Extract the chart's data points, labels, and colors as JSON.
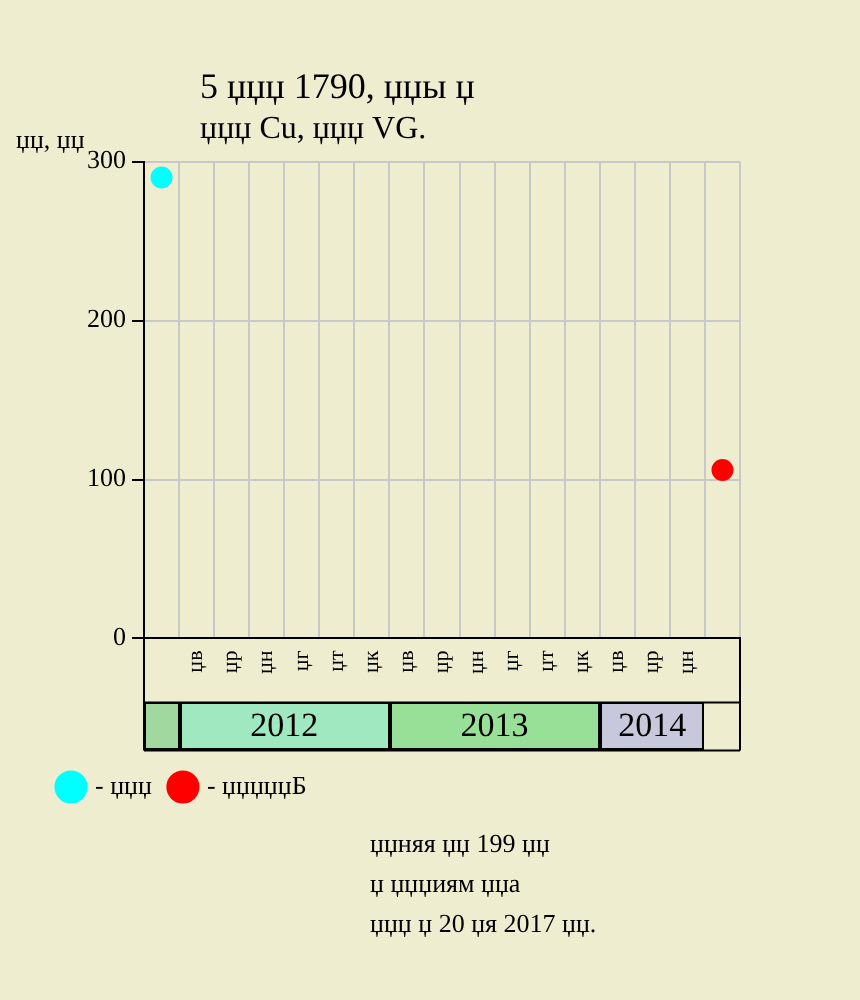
{
  "chart_data": {
    "type": "scatter",
    "title": "5 џџџ 1790, џџы џ\nџџџ Cu, џџџ VG.",
    "ylabel": "џџ, џџ",
    "categories": [
      null,
      "џв",
      "џр",
      "џн",
      "џг",
      "џт",
      "џк",
      "џв",
      "џр",
      "џн",
      "џг",
      "џт",
      "џк",
      "џв",
      "џр",
      "џн",
      null
    ],
    "series": [
      {
        "name": "- џџџ",
        "color": "#00ffff",
        "values": [
          290,
          null,
          null,
          null,
          null,
          null,
          null,
          null,
          null,
          null,
          null,
          null,
          null,
          null,
          null,
          null,
          null
        ]
      },
      {
        "name": "- џџџџџБ",
        "color": "#ff0000",
        "values": [
          null,
          null,
          null,
          null,
          null,
          null,
          null,
          null,
          null,
          null,
          null,
          null,
          null,
          null,
          null,
          null,
          106
        ]
      }
    ],
    "ylim": [
      0,
      300
    ],
    "yticks": [
      0,
      100,
      200,
      300
    ],
    "grid": true,
    "legend": "bottom left",
    "marker": "circle",
    "annotations": [
      "2012",
      "2013",
      "2014",
      "џџняя џџ 199 џџ",
      "џ џџџиям џџа",
      "џџџ џ 20 џя 2017 џџ."
    ]
  }
}
